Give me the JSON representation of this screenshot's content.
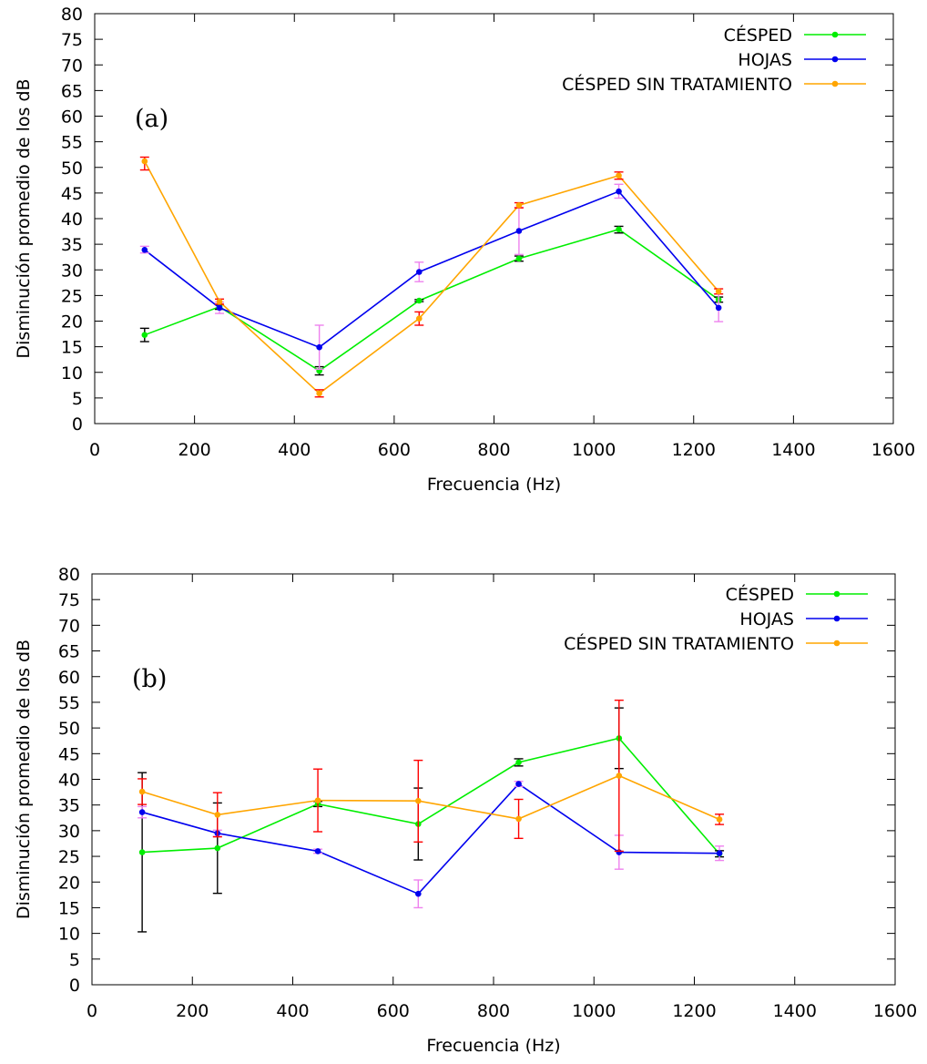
{
  "chart_data": [
    {
      "type": "line",
      "panel_label": "(a)",
      "xlabel": "Frecuencia (Hz)",
      "ylabel": "Disminución promedio de los dB",
      "xlim": [
        0,
        1600
      ],
      "ylim": [
        0,
        80
      ],
      "x_ticks": [
        0,
        200,
        400,
        600,
        800,
        1000,
        1200,
        1400,
        1600
      ],
      "y_ticks": [
        0,
        5,
        10,
        15,
        20,
        25,
        30,
        35,
        40,
        45,
        50,
        55,
        60,
        65,
        70,
        75,
        80
      ],
      "legend_position": "top-right",
      "grid": false,
      "x": [
        100,
        250,
        450,
        650,
        850,
        1050,
        1250
      ],
      "series": [
        {
          "name": "CÉSPED",
          "color": "#00ee00",
          "error_color": "#000000",
          "values": [
            17.3,
            22.8,
            10.3,
            24.0,
            32.2,
            37.9,
            24.2
          ],
          "errors": [
            [
              16.0,
              18.6
            ],
            [
              22.3,
              23.2
            ],
            [
              9.5,
              11.1
            ],
            [
              23.8,
              24.2
            ],
            [
              31.7,
              32.7
            ],
            [
              37.2,
              38.5
            ],
            [
              23.7,
              24.7
            ]
          ]
        },
        {
          "name": "HOJAS",
          "color": "#0000ee",
          "error_color": "#ee82ee",
          "values": [
            33.9,
            22.6,
            14.9,
            29.6,
            37.6,
            45.3,
            22.6
          ],
          "errors": [
            [
              33.3,
              34.6
            ],
            [
              21.5,
              23.7
            ],
            [
              10.6,
              19.2
            ],
            [
              27.7,
              31.5
            ],
            [
              33.0,
              42.2
            ],
            [
              44.0,
              46.7
            ],
            [
              19.9,
              25.3
            ]
          ]
        },
        {
          "name": "CÉSPED SIN TRATAMIENTO",
          "color": "#ffa500",
          "error_color": "#ff0000",
          "values": [
            51.2,
            23.8,
            5.9,
            20.5,
            42.6,
            48.4,
            25.8
          ],
          "errors": [
            [
              49.5,
              52.0
            ],
            [
              23.3,
              24.3
            ],
            [
              5.2,
              6.6
            ],
            [
              19.2,
              21.8
            ],
            [
              42.1,
              43.1
            ],
            [
              47.7,
              49.1
            ],
            [
              25.3,
              26.3
            ]
          ]
        }
      ]
    },
    {
      "type": "line",
      "panel_label": "(b)",
      "xlabel": "Frecuencia (Hz)",
      "ylabel": "Disminución promedio de los dB",
      "xlim": [
        0,
        1600
      ],
      "ylim": [
        0,
        80
      ],
      "x_ticks": [
        0,
        200,
        400,
        600,
        800,
        1000,
        1200,
        1400,
        1600
      ],
      "y_ticks": [
        0,
        5,
        10,
        15,
        20,
        25,
        30,
        35,
        40,
        45,
        50,
        55,
        60,
        65,
        70,
        75,
        80
      ],
      "legend_position": "top-right",
      "grid": false,
      "x": [
        100,
        250,
        450,
        650,
        850,
        1050,
        1250
      ],
      "series": [
        {
          "name": "CÉSPED",
          "color": "#00ee00",
          "error_color": "#000000",
          "values": [
            25.8,
            26.6,
            35.2,
            31.3,
            43.3,
            48.0,
            25.5
          ],
          "errors": [
            [
              10.3,
              41.3
            ],
            [
              17.8,
              35.4
            ],
            [
              34.7,
              35.7
            ],
            [
              24.3,
              38.3
            ],
            [
              42.6,
              44.0
            ],
            [
              42.1,
              53.9
            ],
            [
              24.9,
              26.1
            ]
          ]
        },
        {
          "name": "HOJAS",
          "color": "#0000ee",
          "error_color": "#ee82ee",
          "values": [
            33.6,
            29.5,
            26.0,
            17.7,
            39.1,
            25.8,
            25.6
          ],
          "errors": [
            [
              32.5,
              34.7
            ],
            [
              28.9,
              30.1
            ],
            [
              25.6,
              26.4
            ],
            [
              15.0,
              20.4
            ],
            [
              38.6,
              39.6
            ],
            [
              22.5,
              29.1
            ],
            [
              24.2,
              27.0
            ]
          ]
        },
        {
          "name": "CÉSPED SIN TRATAMIENTO",
          "color": "#ffa500",
          "error_color": "#ff0000",
          "values": [
            37.6,
            33.1,
            35.9,
            35.8,
            32.3,
            40.7,
            32.2
          ],
          "errors": [
            [
              35.1,
              40.1
            ],
            [
              28.8,
              37.4
            ],
            [
              29.8,
              42.0
            ],
            [
              27.8,
              43.7
            ],
            [
              28.5,
              36.1
            ],
            [
              26.0,
              55.4
            ],
            [
              31.2,
              33.2
            ]
          ]
        }
      ]
    }
  ]
}
